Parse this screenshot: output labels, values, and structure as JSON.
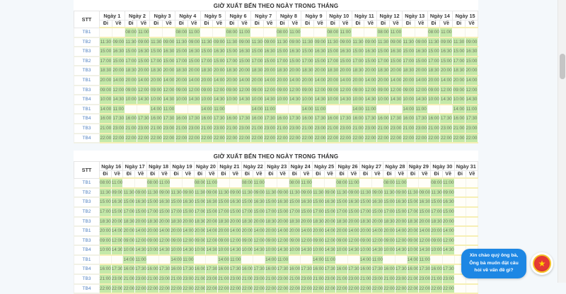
{
  "schedule": {
    "title": "GIỜ XUẤT BẾN THEO NGÀY TRONG THÁNG",
    "stt_header": "STT",
    "day_prefix": "Ngày",
    "depart_header": "Đi",
    "return_header": "Về",
    "routes": [
      {
        "code": "TB1",
        "depart": "08:00",
        "return": "11:00",
        "days": "even"
      },
      {
        "code": "TB2",
        "depart": "11:30",
        "return": "09:00",
        "days": "all"
      },
      {
        "code": "TB3",
        "depart": "15:00",
        "return": "16:30",
        "days": "all"
      },
      {
        "code": "TB2",
        "depart": "17:00",
        "return": "15:00",
        "days": "all"
      },
      {
        "code": "TB3",
        "depart": "18:30",
        "return": "20:00",
        "days": "all"
      },
      {
        "code": "TB1",
        "depart": "20:00",
        "return": "14:00",
        "days": "all"
      },
      {
        "code": "TB3",
        "depart": "09:00",
        "return": "12:00",
        "days": "all"
      },
      {
        "code": "TB4",
        "depart": "10:00",
        "return": "14:30",
        "days": "all"
      },
      {
        "code": "TB1",
        "depart": "14:00",
        "return": "11:00",
        "days": "odd"
      },
      {
        "code": "TB4",
        "depart": "16:00",
        "return": "17:30",
        "days": "all"
      },
      {
        "code": "TB3",
        "depart": "21:00",
        "return": "23:00",
        "days": "all"
      },
      {
        "code": "TB4",
        "depart": "22:00",
        "return": "22:00",
        "days": "all"
      }
    ],
    "tables": [
      {
        "day_start": 1,
        "day_end": 15,
        "empty_days": []
      },
      {
        "day_start": 16,
        "day_end": 31,
        "empty_days": [
          31
        ]
      }
    ]
  },
  "chat": {
    "message": "Xin chào quý ông bà, Ông bà muốn đặt câu hỏi về vấn đề gì?",
    "avatar_icon": "vietnam-emblem-star"
  },
  "colors": {
    "page_bg": "#f4f8fb",
    "cell_green": "#c4e9a9",
    "cell_text": "#6e7562",
    "row_border": "#f6efb5",
    "label_blue": "#4d7fc0",
    "chat_blue": "#1d87e4"
  }
}
